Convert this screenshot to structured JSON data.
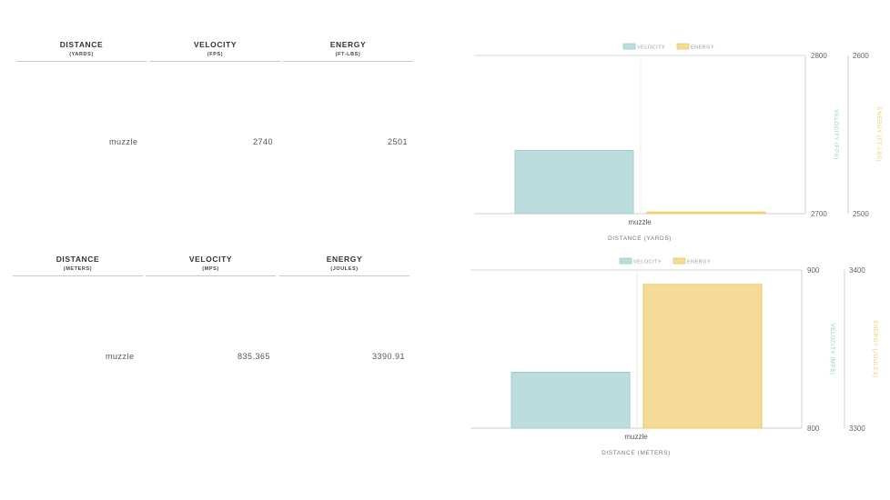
{
  "tables": [
    {
      "headers": [
        {
          "main": "DISTANCE",
          "sub": "(YARDS)"
        },
        {
          "main": "VELOCITY",
          "sub": "(FPS)"
        },
        {
          "main": "ENERGY",
          "sub": "(FT-LBS)"
        }
      ],
      "row": [
        "muzzle",
        "2740",
        "2501"
      ]
    },
    {
      "headers": [
        {
          "main": "DISTANCE",
          "sub": "(METERS)"
        },
        {
          "main": "VELOCITY",
          "sub": "(MPS)"
        },
        {
          "main": "ENERGY",
          "sub": "(JOULES)"
        }
      ],
      "row": [
        "muzzle",
        "835.365",
        "3390.91"
      ]
    }
  ],
  "colors": {
    "velocity_fill": "#bcdcde",
    "velocity_stroke": "#9fcdd0",
    "energy_fill": "#f5db98",
    "energy_stroke": "#ecc969",
    "velocity_text": "#8fc9cc",
    "energy_text": "#f0c96a"
  },
  "chart_data": [
    {
      "type": "bar",
      "categories": [
        "muzzle"
      ],
      "series": [
        {
          "name": "VELOCITY",
          "values": [
            2740
          ],
          "axis": "left"
        },
        {
          "name": "ENERGY",
          "values": [
            2501
          ],
          "axis": "right"
        }
      ],
      "xlabel": "DISTANCE (YARDS)",
      "ylabel": "VELOCITY (FPS)",
      "y2label": "ENERGY (FT-LBS)",
      "ylim": [
        2700,
        2800
      ],
      "y2lim": [
        2500,
        2600
      ],
      "yticks": [
        "2800",
        "2700"
      ],
      "y2ticks": [
        "2600",
        "2500"
      ],
      "legend": "top-center"
    },
    {
      "type": "bar",
      "categories": [
        "muzzle"
      ],
      "series": [
        {
          "name": "VELOCITY",
          "values": [
            835.365
          ],
          "axis": "left"
        },
        {
          "name": "ENERGY",
          "values": [
            3390.91
          ],
          "axis": "right"
        }
      ],
      "xlabel": "DISTANCE (METERS)",
      "ylabel": "VELOCITY (MPS)",
      "y2label": "ENERGY (JOULES)",
      "ylim": [
        800,
        900
      ],
      "y2lim": [
        3300,
        3400
      ],
      "yticks": [
        "900",
        "800"
      ],
      "y2ticks": [
        "3400",
        "3300"
      ],
      "legend": "top-center"
    }
  ]
}
